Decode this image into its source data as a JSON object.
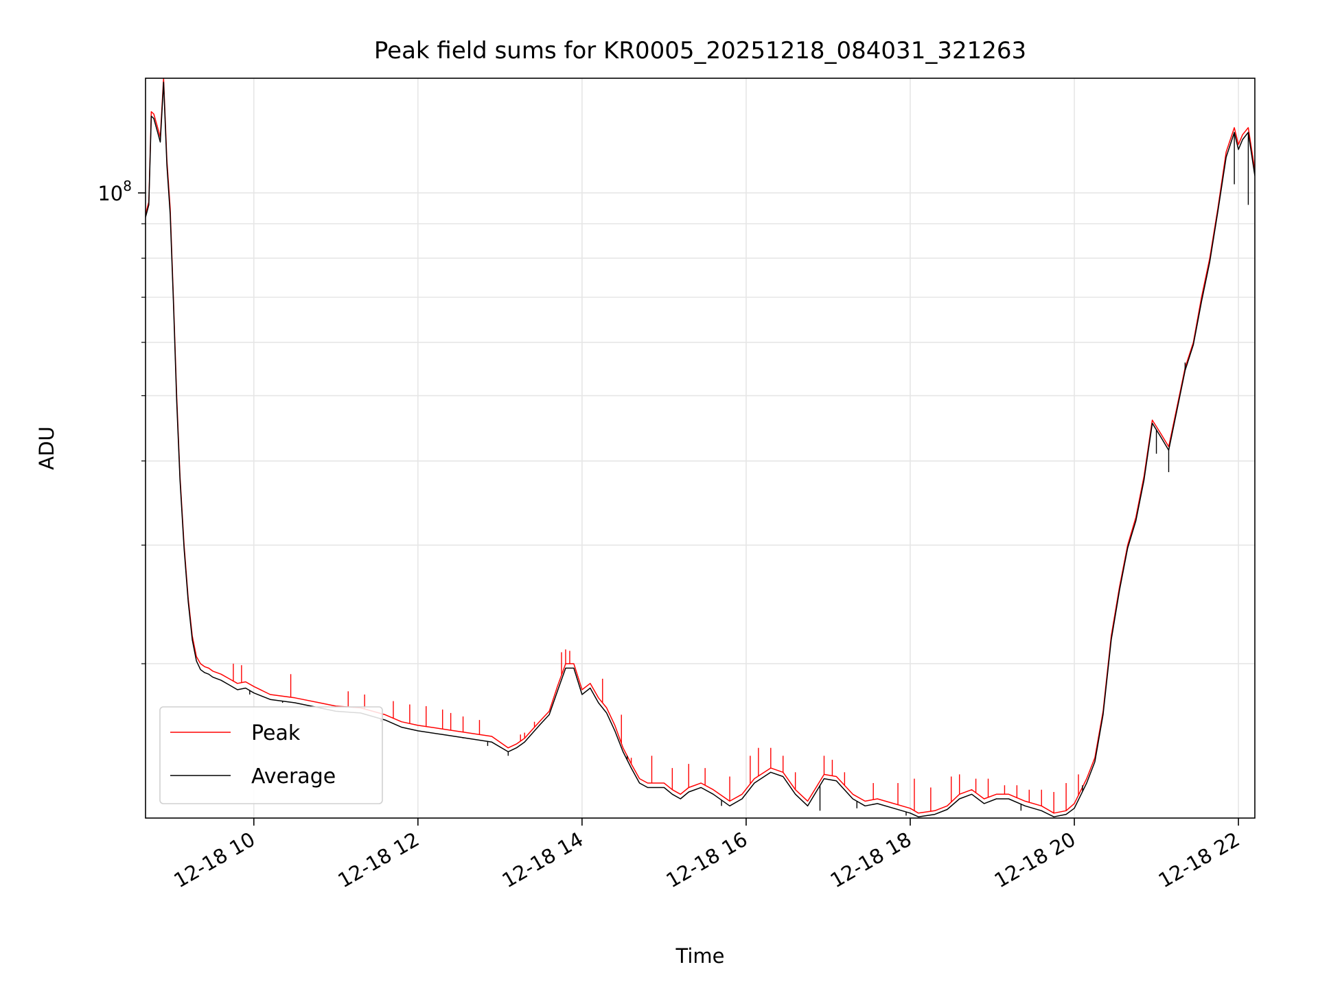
{
  "chart_data": {
    "type": "line",
    "title": "Peak field sums for KR0005_20251218_084031_321263",
    "xlabel": "Time",
    "ylabel": "ADU",
    "yscale": "log",
    "xlim": [
      8.68,
      22.2
    ],
    "ylim": [
      11800000,
      148000000
    ],
    "grid": true,
    "legend_position": "lower-left",
    "x_ticks": [
      {
        "value": 10,
        "label": "12-18 10"
      },
      {
        "value": 12,
        "label": "12-18 12"
      },
      {
        "value": 14,
        "label": "12-18 14"
      },
      {
        "value": 16,
        "label": "12-18 16"
      },
      {
        "value": 18,
        "label": "12-18 18"
      },
      {
        "value": 20,
        "label": "12-18 20"
      },
      {
        "value": 22,
        "label": "12-18 22"
      }
    ],
    "y_major_ticks": [
      {
        "value": 100000000,
        "base": "10",
        "exp": "8"
      }
    ],
    "y_minor_ticks": [
      20000000,
      30000000,
      40000000,
      50000000,
      60000000,
      70000000,
      80000000,
      90000000
    ],
    "series": [
      {
        "name": "Peak",
        "color": "#ff0000",
        "x": [
          8.68,
          8.72,
          8.75,
          8.78,
          8.82,
          8.86,
          8.9,
          8.94,
          8.98,
          9.02,
          9.06,
          9.1,
          9.15,
          9.2,
          9.25,
          9.3,
          9.35,
          9.4,
          9.45,
          9.5,
          9.6,
          9.7,
          9.8,
          9.9,
          10.0,
          10.2,
          10.5,
          10.8,
          11.0,
          11.3,
          11.6,
          11.8,
          12.0,
          12.3,
          12.6,
          12.9,
          13.1,
          13.2,
          13.3,
          13.4,
          13.5,
          13.6,
          13.7,
          13.8,
          13.9,
          14.0,
          14.1,
          14.2,
          14.3,
          14.4,
          14.5,
          14.6,
          14.7,
          14.8,
          15.0,
          15.1,
          15.2,
          15.3,
          15.45,
          15.6,
          15.8,
          15.95,
          16.1,
          16.3,
          16.45,
          16.6,
          16.75,
          16.95,
          17.1,
          17.3,
          17.45,
          17.6,
          17.8,
          18.0,
          18.1,
          18.3,
          18.45,
          18.6,
          18.75,
          18.9,
          19.05,
          19.2,
          19.4,
          19.6,
          19.75,
          19.9,
          20.0,
          20.15,
          20.25,
          20.35,
          20.45,
          20.55,
          20.65,
          20.75,
          20.85,
          20.95,
          21.05,
          21.15,
          21.25,
          21.35,
          21.45,
          21.55,
          21.65,
          21.75,
          21.85,
          21.95,
          22.0,
          22.05,
          22.12,
          22.2
        ],
        "y": [
          93000000,
          97000000,
          132000000,
          131000000,
          126000000,
          121000000,
          148000000,
          112000000,
          95000000,
          70000000,
          50000000,
          38000000,
          30000000,
          25000000,
          22000000,
          20500000,
          20000000,
          19800000,
          19700000,
          19500000,
          19300000,
          19000000,
          18700000,
          18800000,
          18500000,
          18000000,
          17800000,
          17500000,
          17300000,
          17200000,
          16800000,
          16400000,
          16200000,
          16000000,
          15800000,
          15600000,
          15000000,
          15200000,
          15500000,
          16000000,
          16500000,
          17000000,
          18500000,
          20000000,
          20000000,
          18300000,
          18700000,
          17800000,
          17200000,
          16200000,
          15000000,
          14200000,
          13500000,
          13300000,
          13300000,
          13000000,
          12800000,
          13100000,
          13300000,
          13000000,
          12500000,
          12800000,
          13500000,
          14000000,
          13800000,
          13000000,
          12500000,
          13700000,
          13600000,
          12800000,
          12500000,
          12600000,
          12400000,
          12200000,
          12000000,
          12100000,
          12300000,
          12800000,
          13000000,
          12600000,
          12800000,
          12800000,
          12500000,
          12300000,
          12000000,
          12100000,
          12400000,
          13500000,
          14500000,
          17000000,
          22000000,
          26000000,
          30000000,
          33000000,
          38000000,
          46000000,
          44000000,
          42000000,
          48000000,
          55000000,
          60000000,
          70000000,
          80000000,
          95000000,
          115000000,
          125000000,
          118000000,
          122000000,
          125000000,
          108000000
        ],
        "spike_x": [
          9.75,
          9.85,
          10.45,
          11.15,
          11.35,
          11.7,
          11.9,
          12.1,
          12.3,
          12.4,
          12.55,
          12.75,
          13.25,
          13.3,
          13.42,
          13.75,
          13.8,
          13.85,
          14.25,
          14.48,
          14.6,
          14.85,
          15.1,
          15.3,
          15.5,
          15.8,
          16.05,
          16.15,
          16.3,
          16.45,
          16.6,
          16.95,
          17.05,
          17.2,
          17.55,
          17.85,
          18.05,
          18.25,
          18.5,
          18.6,
          18.8,
          18.95,
          19.15,
          19.3,
          19.45,
          19.6,
          19.75,
          19.9,
          20.05
        ],
        "spike_y": [
          20000000,
          19900000,
          19300000,
          18200000,
          18000000,
          17600000,
          17400000,
          17300000,
          17100000,
          16900000,
          16700000,
          16500000,
          15700000,
          15800000,
          16400000,
          20800000,
          21000000,
          20900000,
          19000000,
          16800000,
          14500000,
          14600000,
          14000000,
          14200000,
          14000000,
          13600000,
          14600000,
          15000000,
          15000000,
          14600000,
          13800000,
          14600000,
          14400000,
          13800000,
          13300000,
          13300000,
          13500000,
          13100000,
          13600000,
          13700000,
          13500000,
          13500000,
          13200000,
          13200000,
          13000000,
          13000000,
          12900000,
          13300000,
          13700000
        ]
      },
      {
        "name": "Average",
        "color": "#000000",
        "x": [
          8.68,
          8.72,
          8.75,
          8.78,
          8.82,
          8.86,
          8.9,
          8.94,
          8.98,
          9.02,
          9.06,
          9.1,
          9.15,
          9.2,
          9.25,
          9.3,
          9.35,
          9.4,
          9.45,
          9.5,
          9.6,
          9.7,
          9.8,
          9.9,
          10.0,
          10.2,
          10.5,
          10.8,
          11.0,
          11.3,
          11.6,
          11.8,
          12.0,
          12.3,
          12.6,
          12.9,
          13.1,
          13.2,
          13.3,
          13.4,
          13.5,
          13.6,
          13.7,
          13.8,
          13.9,
          14.0,
          14.1,
          14.2,
          14.3,
          14.4,
          14.5,
          14.6,
          14.7,
          14.8,
          15.0,
          15.1,
          15.2,
          15.3,
          15.45,
          15.6,
          15.8,
          15.95,
          16.1,
          16.3,
          16.45,
          16.6,
          16.75,
          16.95,
          17.1,
          17.3,
          17.45,
          17.6,
          17.8,
          18.0,
          18.1,
          18.3,
          18.45,
          18.6,
          18.75,
          18.9,
          19.05,
          19.2,
          19.4,
          19.6,
          19.75,
          19.9,
          20.0,
          20.15,
          20.25,
          20.35,
          20.45,
          20.55,
          20.65,
          20.75,
          20.85,
          20.95,
          21.05,
          21.15,
          21.25,
          21.35,
          21.45,
          21.55,
          21.65,
          21.75,
          21.85,
          21.95,
          22.0,
          22.05,
          22.12,
          22.2
        ],
        "y": [
          92000000,
          96000000,
          130000000,
          129000000,
          124000000,
          119000000,
          146000000,
          110000000,
          93000000,
          69000000,
          49000000,
          37500000,
          29600000,
          24700000,
          21700000,
          20200000,
          19600000,
          19400000,
          19300000,
          19100000,
          18900000,
          18600000,
          18300000,
          18400000,
          18100000,
          17700000,
          17500000,
          17200000,
          17000000,
          16900000,
          16500000,
          16100000,
          15900000,
          15700000,
          15500000,
          15300000,
          14800000,
          15000000,
          15300000,
          15800000,
          16300000,
          16800000,
          18200000,
          19700000,
          19700000,
          18000000,
          18400000,
          17500000,
          16900000,
          15900000,
          14800000,
          14000000,
          13300000,
          13100000,
          13100000,
          12800000,
          12600000,
          12900000,
          13100000,
          12800000,
          12300000,
          12600000,
          13300000,
          13800000,
          13600000,
          12800000,
          12300000,
          13500000,
          13400000,
          12600000,
          12300000,
          12400000,
          12200000,
          12000000,
          11850000,
          11950000,
          12150000,
          12600000,
          12800000,
          12400000,
          12600000,
          12600000,
          12300000,
          12100000,
          11850000,
          11950000,
          12200000,
          13300000,
          14300000,
          16800000,
          21700000,
          25700000,
          29700000,
          32600000,
          37500000,
          45500000,
          43500000,
          41500000,
          47500000,
          54500000,
          59500000,
          69000000,
          79000000,
          94000000,
          113000000,
          123000000,
          116000000,
          120000000,
          123000000,
          106000000
        ],
        "spike_x": [
          9.95,
          10.35,
          11.55,
          12.55,
          12.85,
          13.1,
          14.55,
          15.7,
          16.9,
          17.35,
          17.95,
          18.4,
          19.35,
          20.1,
          21.0,
          21.15,
          21.35,
          21.95,
          22.12
        ],
        "spike_y": [
          18000000,
          17500000,
          16400000,
          15500000,
          15100000,
          14600000,
          14600000,
          12300000,
          12100000,
          12200000,
          11900000,
          12100000,
          12100000,
          13200000,
          41000000,
          38500000,
          56000000,
          103000000,
          96000000
        ]
      }
    ]
  }
}
